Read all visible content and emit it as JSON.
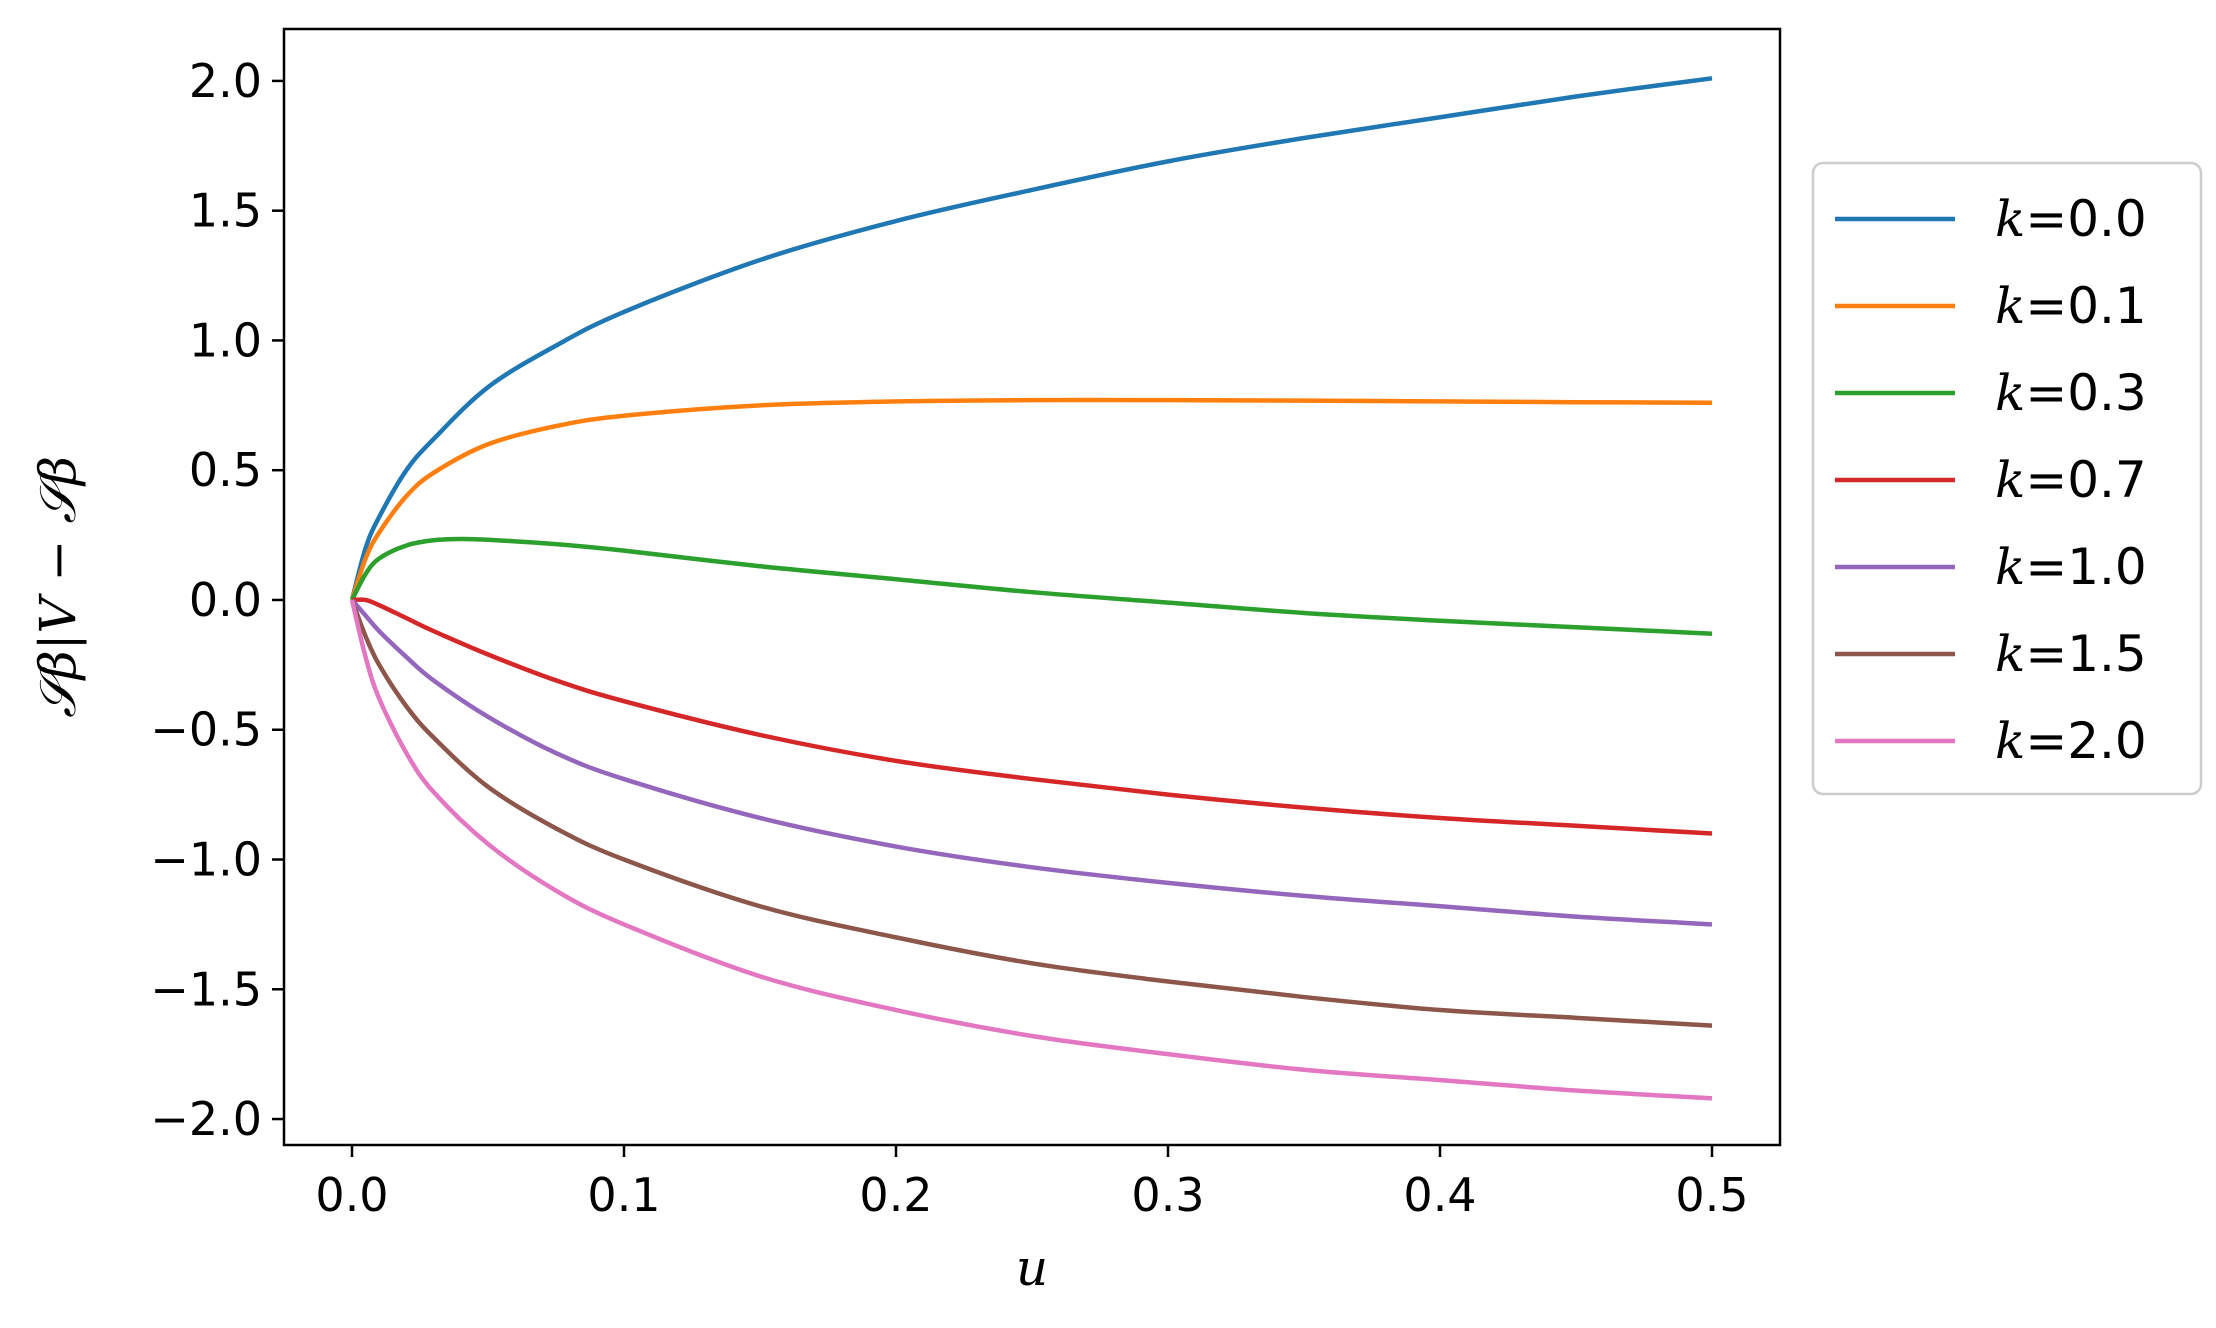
{
  "chart_data": {
    "type": "line",
    "xlabel": "u",
    "ylabel": "𝒮β|V − 𝒮β",
    "xlim": [
      -0.025,
      0.525
    ],
    "ylim": [
      -2.1,
      2.2
    ],
    "x_ticks": [
      {
        "value": 0.0,
        "label": "0.0"
      },
      {
        "value": 0.1,
        "label": "0.1"
      },
      {
        "value": 0.2,
        "label": "0.2"
      },
      {
        "value": 0.3,
        "label": "0.3"
      },
      {
        "value": 0.4,
        "label": "0.4"
      },
      {
        "value": 0.5,
        "label": "0.5"
      }
    ],
    "y_ticks": [
      {
        "value": 2.0,
        "label": "2.0"
      },
      {
        "value": 1.5,
        "label": "1.5"
      },
      {
        "value": 1.0,
        "label": "1.0"
      },
      {
        "value": 0.5,
        "label": "0.5"
      },
      {
        "value": 0.0,
        "label": "0.0"
      },
      {
        "value": -0.5,
        "label": "−0.5"
      },
      {
        "value": -1.0,
        "label": "−1.0"
      },
      {
        "value": -1.5,
        "label": "−1.5"
      },
      {
        "value": -2.0,
        "label": "−2.0"
      }
    ],
    "grid": false,
    "legend_position": "outside-right",
    "legend_prefix": "k",
    "series": [
      {
        "name": "=0.0",
        "color": "#1f77b4",
        "x": [
          0,
          0.005,
          0.01,
          0.02,
          0.03,
          0.05,
          0.075,
          0.1,
          0.15,
          0.2,
          0.25,
          0.3,
          0.35,
          0.4,
          0.45,
          0.5
        ],
        "y": [
          0,
          0.2,
          0.32,
          0.5,
          0.62,
          0.82,
          0.98,
          1.11,
          1.31,
          1.46,
          1.58,
          1.69,
          1.78,
          1.86,
          1.94,
          2.01
        ]
      },
      {
        "name": "=0.1",
        "color": "#ff7f0e",
        "x": [
          0,
          0.005,
          0.01,
          0.02,
          0.03,
          0.05,
          0.075,
          0.1,
          0.15,
          0.2,
          0.25,
          0.3,
          0.35,
          0.4,
          0.45,
          0.5
        ],
        "y": [
          0,
          0.16,
          0.26,
          0.4,
          0.49,
          0.6,
          0.67,
          0.71,
          0.75,
          0.765,
          0.77,
          0.77,
          0.768,
          0.765,
          0.762,
          0.76
        ]
      },
      {
        "name": "=0.3",
        "color": "#2ca02c",
        "x": [
          0,
          0.005,
          0.01,
          0.02,
          0.03,
          0.04,
          0.05,
          0.075,
          0.1,
          0.15,
          0.2,
          0.25,
          0.3,
          0.35,
          0.4,
          0.45,
          0.5
        ],
        "y": [
          0,
          0.1,
          0.16,
          0.21,
          0.23,
          0.235,
          0.232,
          0.215,
          0.19,
          0.13,
          0.08,
          0.03,
          -0.01,
          -0.05,
          -0.08,
          -0.105,
          -0.13
        ]
      },
      {
        "name": "=0.7",
        "color": "#d62728",
        "x": [
          0,
          0.005,
          0.01,
          0.02,
          0.03,
          0.05,
          0.075,
          0.1,
          0.15,
          0.2,
          0.25,
          0.3,
          0.35,
          0.4,
          0.45,
          0.5
        ],
        "y": [
          0,
          0.0,
          -0.02,
          -0.07,
          -0.12,
          -0.21,
          -0.31,
          -0.39,
          -0.52,
          -0.62,
          -0.69,
          -0.75,
          -0.8,
          -0.84,
          -0.87,
          -0.9
        ]
      },
      {
        "name": "=1.0",
        "color": "#9467bd",
        "x": [
          0,
          0.005,
          0.01,
          0.02,
          0.03,
          0.05,
          0.075,
          0.1,
          0.15,
          0.2,
          0.25,
          0.3,
          0.35,
          0.4,
          0.45,
          0.5
        ],
        "y": [
          0,
          -0.06,
          -0.12,
          -0.22,
          -0.31,
          -0.45,
          -0.59,
          -0.69,
          -0.84,
          -0.95,
          -1.03,
          -1.09,
          -1.14,
          -1.18,
          -1.22,
          -1.25
        ]
      },
      {
        "name": "=1.5",
        "color": "#8c564b",
        "x": [
          0,
          0.005,
          0.01,
          0.02,
          0.03,
          0.05,
          0.075,
          0.1,
          0.15,
          0.2,
          0.25,
          0.3,
          0.35,
          0.4,
          0.45,
          0.5
        ],
        "y": [
          0,
          -0.14,
          -0.25,
          -0.41,
          -0.53,
          -0.72,
          -0.88,
          -1.0,
          -1.18,
          -1.3,
          -1.4,
          -1.47,
          -1.53,
          -1.58,
          -1.61,
          -1.64
        ]
      },
      {
        "name": "=2.0",
        "color": "#e377c2",
        "x": [
          0,
          0.005,
          0.01,
          0.02,
          0.03,
          0.05,
          0.075,
          0.1,
          0.15,
          0.2,
          0.25,
          0.3,
          0.35,
          0.4,
          0.45,
          0.5
        ],
        "y": [
          0,
          -0.22,
          -0.38,
          -0.59,
          -0.74,
          -0.94,
          -1.12,
          -1.25,
          -1.45,
          -1.58,
          -1.68,
          -1.75,
          -1.81,
          -1.85,
          -1.89,
          -1.92
        ]
      }
    ]
  }
}
